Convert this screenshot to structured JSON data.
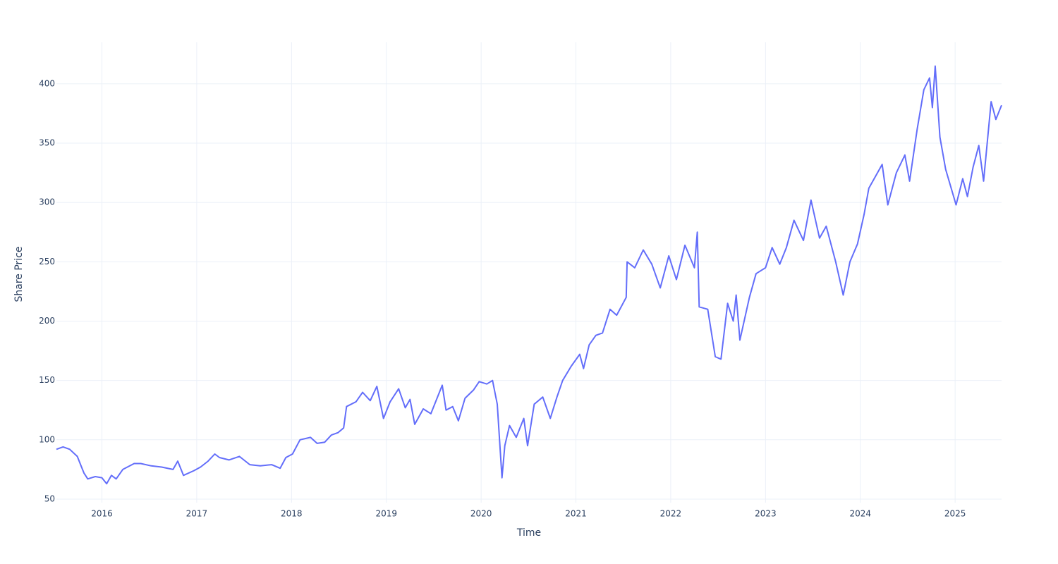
{
  "chart_data": {
    "type": "line",
    "x_label": "Time",
    "y_label": "Share Price",
    "color": "#636efa",
    "grid": true,
    "x": [
      2015.52,
      2015.59,
      2015.66,
      2015.74,
      2015.78,
      2015.81,
      2015.85,
      2015.93,
      2016.0,
      2016.05,
      2016.1,
      2016.15,
      2016.22,
      2016.34,
      2016.41,
      2016.52,
      2016.63,
      2016.75,
      2016.8,
      2016.86,
      2016.97,
      2017.04,
      2017.12,
      2017.19,
      2017.24,
      2017.34,
      2017.45,
      2017.56,
      2017.67,
      2017.79,
      2017.88,
      2017.94,
      2018.01,
      2018.09,
      2018.2,
      2018.27,
      2018.35,
      2018.42,
      2018.49,
      2018.55,
      2018.58,
      2018.68,
      2018.75,
      2018.83,
      2018.9,
      2018.97,
      2019.04,
      2019.13,
      2019.2,
      2019.25,
      2019.3,
      2019.39,
      2019.47,
      2019.59,
      2019.63,
      2019.7,
      2019.76,
      2019.83,
      2019.92,
      2019.98,
      2020.06,
      2020.12,
      2020.17,
      2020.22,
      2020.25,
      2020.3,
      2020.37,
      2020.45,
      2020.49,
      2020.56,
      2020.65,
      2020.73,
      2020.8,
      2020.86,
      2020.95,
      2021.04,
      2021.08,
      2021.14,
      2021.21,
      2021.28,
      2021.36,
      2021.43,
      2021.53,
      2021.54,
      2021.62,
      2021.71,
      2021.8,
      2021.89,
      2021.98,
      2022.06,
      2022.15,
      2022.25,
      2022.28,
      2022.3,
      2022.39,
      2022.47,
      2022.53,
      2022.6,
      2022.66,
      2022.69,
      2022.73,
      2022.83,
      2022.9,
      2023.0,
      2023.07,
      2023.15,
      2023.22,
      2023.3,
      2023.4,
      2023.48,
      2023.57,
      2023.64,
      2023.74,
      2023.82,
      2023.89,
      2023.97,
      2024.04,
      2024.09,
      2024.23,
      2024.29,
      2024.38,
      2024.47,
      2024.52,
      2024.6,
      2024.67,
      2024.73,
      2024.76,
      2024.79,
      2024.84,
      2024.9,
      2025.01,
      2025.08,
      2025.13,
      2025.19,
      2025.25,
      2025.3,
      2025.38,
      2025.43,
      2025.49
    ],
    "values": [
      92,
      94,
      92,
      86,
      78,
      72,
      67,
      69,
      68,
      63,
      70,
      67,
      75,
      80,
      80,
      78,
      77,
      75,
      82,
      70,
      74,
      77,
      82,
      88,
      85,
      83,
      86,
      79,
      78,
      79,
      76,
      85,
      88,
      100,
      102,
      97,
      98,
      104,
      106,
      110,
      128,
      132,
      140,
      133,
      145,
      118,
      132,
      143,
      127,
      134,
      113,
      126,
      122,
      146,
      125,
      128,
      116,
      135,
      142,
      149,
      147,
      150,
      130,
      68,
      95,
      112,
      102,
      118,
      95,
      130,
      136,
      118,
      136,
      150,
      162,
      172,
      160,
      180,
      188,
      190,
      210,
      205,
      220,
      250,
      245,
      260,
      248,
      228,
      255,
      235,
      264,
      245,
      275,
      212,
      210,
      170,
      168,
      215,
      200,
      222,
      184,
      220,
      240,
      245,
      262,
      248,
      262,
      285,
      268,
      302,
      270,
      280,
      250,
      222,
      250,
      265,
      290,
      312,
      332,
      298,
      325,
      340,
      318,
      362,
      395,
      405,
      380,
      415,
      355,
      328,
      298,
      320,
      305,
      330,
      348,
      318,
      385,
      370,
      382
    ],
    "xlim": [
      2015.52,
      2025.49
    ],
    "xticks": [
      2016,
      2017,
      2018,
      2019,
      2020,
      2021,
      2022,
      2023,
      2024,
      2025
    ],
    "ylim": [
      47,
      435
    ],
    "yticks": [
      50,
      100,
      150,
      200,
      250,
      300,
      350,
      400
    ]
  }
}
